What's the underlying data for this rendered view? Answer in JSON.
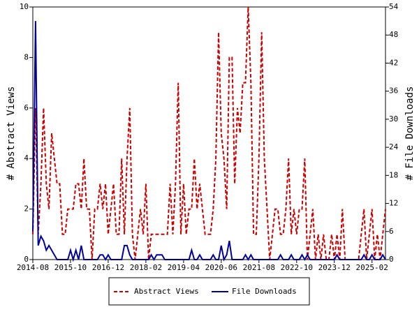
{
  "chart_data": {
    "type": "line",
    "y_label": "# Abstract Views",
    "y2_label": "# File Downloads",
    "categories": [
      "2014-08",
      null,
      null,
      null,
      null,
      null,
      null,
      null,
      null,
      null,
      null,
      null,
      null,
      null,
      "2015-10",
      null,
      null,
      null,
      null,
      null,
      null,
      null,
      null,
      null,
      null,
      null,
      null,
      null,
      "2016-12",
      null,
      null,
      null,
      null,
      null,
      null,
      null,
      null,
      null,
      null,
      null,
      null,
      null,
      "2018-02",
      null,
      null,
      null,
      null,
      null,
      null,
      null,
      null,
      null,
      null,
      null,
      null,
      null,
      "2019-04",
      null,
      null,
      null,
      null,
      null,
      null,
      null,
      null,
      null,
      null,
      null,
      null,
      null,
      "2020-06",
      null,
      null,
      null,
      null,
      null,
      null,
      null,
      null,
      null,
      null,
      null,
      null,
      null,
      "2021-08",
      null,
      null,
      null,
      null,
      null,
      null,
      null,
      null,
      null,
      null,
      null,
      null,
      null,
      "2022-10",
      null,
      null,
      null,
      null,
      null,
      null,
      null,
      null,
      null,
      null,
      null,
      null,
      null,
      "2023-12",
      null,
      null,
      null,
      null,
      null,
      null,
      null,
      null,
      null,
      null,
      null,
      null,
      null,
      "2025-02",
      null,
      null,
      null,
      null,
      null
    ],
    "series": [
      {
        "name": "Abstract Views",
        "color": "#cc0000",
        "dash": true,
        "values": [
          1,
          6,
          1,
          3,
          6,
          3,
          2,
          5,
          4,
          3,
          3,
          1,
          1,
          2,
          2,
          2,
          3,
          3,
          2,
          4,
          2,
          2,
          0,
          2,
          2,
          3,
          2,
          3,
          1,
          2,
          3,
          1,
          1,
          4,
          1,
          4,
          6,
          1,
          0,
          1,
          2,
          1,
          3,
          0,
          1,
          1,
          1,
          1,
          1,
          1,
          1,
          3,
          1,
          3,
          7,
          1,
          3,
          1,
          2,
          2,
          4,
          2,
          3,
          2,
          1,
          1,
          1,
          2,
          4,
          9,
          5,
          4,
          2,
          8,
          8,
          3,
          6,
          5,
          7,
          7,
          10,
          7,
          1,
          1,
          4,
          9,
          4,
          2,
          0,
          1,
          2,
          2,
          1,
          1,
          2,
          4,
          1,
          2,
          1,
          2,
          2,
          4,
          0,
          1,
          2,
          0,
          1,
          0,
          1,
          0,
          0,
          1,
          0,
          1,
          0,
          2,
          0,
          0,
          0,
          0,
          0,
          0,
          1,
          2,
          0,
          1,
          2,
          0,
          1,
          0,
          1,
          2
        ]
      },
      {
        "name": "File Downloads",
        "color": "#000099",
        "dash": false,
        "axis": "y2",
        "values": [
          6,
          51,
          3,
          5,
          4,
          2,
          3,
          2,
          1,
          0,
          0,
          0,
          0,
          0,
          2,
          0,
          2,
          0,
          3,
          0,
          0,
          0,
          0,
          0,
          0,
          1,
          1,
          0,
          1,
          0,
          0,
          0,
          0,
          0,
          3,
          3,
          1,
          0,
          0,
          0,
          0,
          0,
          0,
          0,
          1,
          0,
          1,
          1,
          1,
          0,
          0,
          0,
          0,
          0,
          0,
          0,
          0,
          0,
          0,
          2,
          0,
          0,
          1,
          0,
          0,
          0,
          0,
          1,
          0,
          0,
          3,
          0,
          1,
          4,
          0,
          0,
          0,
          0,
          0,
          1,
          0,
          1,
          0,
          0,
          0,
          0,
          0,
          0,
          0,
          0,
          0,
          0,
          1,
          0,
          0,
          0,
          1,
          0,
          0,
          0,
          1,
          0,
          1,
          0,
          0,
          0,
          0,
          0,
          0,
          0,
          0,
          0,
          0,
          1,
          0,
          0,
          0,
          0,
          0,
          0,
          0,
          0,
          0,
          1,
          0,
          0,
          1,
          0,
          0,
          0,
          1,
          0
        ]
      }
    ],
    "ylim": [
      0,
      10
    ],
    "yticks": [
      0,
      2,
      4,
      6,
      8,
      10
    ],
    "y2lim": [
      0,
      54
    ],
    "y2ticks": [
      0,
      6,
      12,
      18,
      24,
      30,
      36,
      42,
      48,
      54
    ],
    "grid": false,
    "legend": "bottom"
  }
}
